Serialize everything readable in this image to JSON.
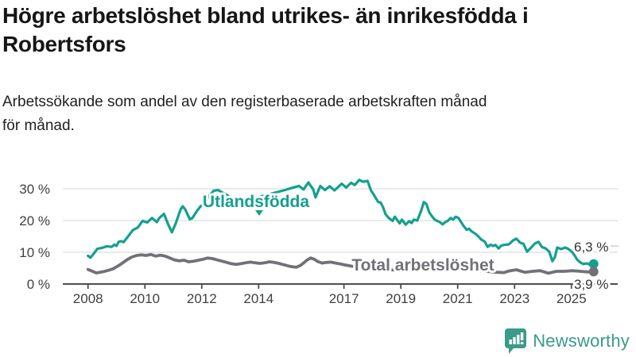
{
  "title": "Högre arbetslöshet bland utrikes- än inrikesfödda i\nRobertsfors",
  "subtitle": "Arbetssökande som andel av den registerbaserade arbetskraften månad\nför månad.",
  "logo": {
    "text": "Newsworthy",
    "icon": "bar-chart-speech-bubble-icon",
    "color": "#3a9a8b"
  },
  "colors": {
    "accent_teal": "#14a08e",
    "line_gray": "#737078",
    "axis": "#4d4d4d",
    "gridline": "#e3e3e3",
    "tick_text": "#3f3f3f",
    "value_text": "#333333"
  },
  "chart_data": {
    "type": "line",
    "title": "Högre arbetslöshet bland utrikes- än inrikesfödda i Robertsfors",
    "subtitle": "Arbetssökande som andel av den registerbaserade arbetskraften månad för månad.",
    "unit": "%",
    "grid": true,
    "xlim": [
      2007.9,
      2026.6
    ],
    "ylim": [
      0,
      35
    ],
    "x_ticks": [
      2008,
      2010,
      2012,
      2014,
      2017,
      2019,
      2021,
      2023,
      2025
    ],
    "y_ticks": [
      {
        "value": 0,
        "label": "0 %"
      },
      {
        "value": 10,
        "label": "10 %"
      },
      {
        "value": 20,
        "label": "20 %"
      },
      {
        "value": 30,
        "label": "30 %"
      }
    ],
    "series": [
      {
        "name": "Utlandsfödda",
        "color": "#14a08e",
        "end_label": "6,3 %",
        "end_value": 6.3,
        "points": [
          [
            2008.0,
            8.9
          ],
          [
            2008.08,
            8.3
          ],
          [
            2008.17,
            9.2
          ],
          [
            2008.33,
            11.1
          ],
          [
            2008.5,
            11.4
          ],
          [
            2008.67,
            11.9
          ],
          [
            2008.83,
            11.7
          ],
          [
            2008.92,
            12.4
          ],
          [
            2009.0,
            12.0
          ],
          [
            2009.08,
            13.3
          ],
          [
            2009.17,
            13.5
          ],
          [
            2009.25,
            13.2
          ],
          [
            2009.33,
            14.1
          ],
          [
            2009.5,
            16.1
          ],
          [
            2009.58,
            17.0
          ],
          [
            2009.75,
            17.8
          ],
          [
            2009.92,
            19.9
          ],
          [
            2010.08,
            19.4
          ],
          [
            2010.25,
            20.8
          ],
          [
            2010.42,
            19.5
          ],
          [
            2010.5,
            20.7
          ],
          [
            2010.67,
            22.1
          ],
          [
            2010.83,
            18.6
          ],
          [
            2010.95,
            16.3
          ],
          [
            2011.08,
            19.0
          ],
          [
            2011.25,
            23.4
          ],
          [
            2011.33,
            24.5
          ],
          [
            2011.42,
            23.5
          ],
          [
            2011.58,
            20.4
          ],
          [
            2011.67,
            20.8
          ],
          [
            2011.83,
            23.0
          ],
          [
            2011.95,
            24.4
          ],
          [
            2012.08,
            25.4
          ],
          [
            2012.25,
            27.6
          ],
          [
            2012.42,
            29.4
          ],
          [
            2012.58,
            29.6
          ],
          [
            2012.75,
            28.7
          ],
          [
            2012.92,
            27.9
          ],
          [
            2013.17,
            26.4
          ],
          [
            2013.42,
            25.3
          ],
          [
            2013.67,
            26.1
          ],
          [
            2013.92,
            27.2
          ],
          [
            2014.17,
            27.8
          ],
          [
            2014.42,
            28.4
          ],
          [
            2014.67,
            29.0
          ],
          [
            2014.92,
            29.6
          ],
          [
            2015.17,
            30.3
          ],
          [
            2015.42,
            30.9
          ],
          [
            2015.58,
            29.8
          ],
          [
            2015.75,
            32.0
          ],
          [
            2015.92,
            29.8
          ],
          [
            2016.0,
            27.3
          ],
          [
            2016.17,
            30.9
          ],
          [
            2016.33,
            29.6
          ],
          [
            2016.5,
            30.8
          ],
          [
            2016.67,
            29.5
          ],
          [
            2016.92,
            31.6
          ],
          [
            2017.08,
            30.4
          ],
          [
            2017.25,
            31.9
          ],
          [
            2017.38,
            31.2
          ],
          [
            2017.54,
            32.8
          ],
          [
            2017.67,
            32.2
          ],
          [
            2017.83,
            32.5
          ],
          [
            2017.95,
            29.5
          ],
          [
            2018.04,
            28.3
          ],
          [
            2018.13,
            26.9
          ],
          [
            2018.21,
            25.8
          ],
          [
            2018.29,
            25.7
          ],
          [
            2018.38,
            24.1
          ],
          [
            2018.46,
            22.0
          ],
          [
            2018.58,
            20.8
          ],
          [
            2018.71,
            19.9
          ],
          [
            2018.79,
            21.2
          ],
          [
            2018.96,
            19.1
          ],
          [
            2019.04,
            20.3
          ],
          [
            2019.17,
            18.7
          ],
          [
            2019.29,
            19.8
          ],
          [
            2019.38,
            19.2
          ],
          [
            2019.46,
            20.3
          ],
          [
            2019.58,
            20.0
          ],
          [
            2019.71,
            23.0
          ],
          [
            2019.81,
            25.8
          ],
          [
            2019.9,
            25.2
          ],
          [
            2020.0,
            22.6
          ],
          [
            2020.1,
            21.3
          ],
          [
            2020.19,
            20.3
          ],
          [
            2020.28,
            19.9
          ],
          [
            2020.37,
            19.5
          ],
          [
            2020.47,
            18.8
          ],
          [
            2020.56,
            19.5
          ],
          [
            2020.65,
            19.9
          ],
          [
            2020.75,
            20.8
          ],
          [
            2020.84,
            20.3
          ],
          [
            2020.93,
            21.2
          ],
          [
            2021.03,
            20.8
          ],
          [
            2021.12,
            19.5
          ],
          [
            2021.21,
            18.3
          ],
          [
            2021.31,
            17.1
          ],
          [
            2021.4,
            17.4
          ],
          [
            2021.49,
            16.6
          ],
          [
            2021.63,
            15.8
          ],
          [
            2021.74,
            14.9
          ],
          [
            2021.82,
            14.1
          ],
          [
            2021.96,
            13.3
          ],
          [
            2022.05,
            11.7
          ],
          [
            2022.16,
            12.4
          ],
          [
            2022.24,
            12.0
          ],
          [
            2022.33,
            12.3
          ],
          [
            2022.44,
            11.2
          ],
          [
            2022.52,
            12.0
          ],
          [
            2022.61,
            12.3
          ],
          [
            2022.8,
            12.5
          ],
          [
            2022.94,
            13.7
          ],
          [
            2023.06,
            14.3
          ],
          [
            2023.2,
            13.0
          ],
          [
            2023.31,
            12.7
          ],
          [
            2023.44,
            10.2
          ],
          [
            2023.53,
            11.0
          ],
          [
            2023.72,
            12.8
          ],
          [
            2023.84,
            13.3
          ],
          [
            2023.97,
            11.6
          ],
          [
            2024.08,
            11.3
          ],
          [
            2024.22,
            10.2
          ],
          [
            2024.33,
            7.2
          ],
          [
            2024.42,
            8.5
          ],
          [
            2024.5,
            11.5
          ],
          [
            2024.64,
            11.0
          ],
          [
            2024.78,
            11.5
          ],
          [
            2024.9,
            11.0
          ],
          [
            2025.01,
            10.2
          ],
          [
            2025.12,
            8.9
          ],
          [
            2025.2,
            7.7
          ],
          [
            2025.31,
            6.8
          ],
          [
            2025.42,
            6.3
          ],
          [
            2025.54,
            6.5
          ],
          [
            2025.65,
            6.1
          ],
          [
            2025.78,
            6.3
          ]
        ]
      },
      {
        "name": "Total arbetslöshet",
        "color": "#737078",
        "end_label": "3,9 %",
        "end_value": 3.9,
        "points": [
          [
            2008.0,
            4.6
          ],
          [
            2008.13,
            4.1
          ],
          [
            2008.29,
            3.5
          ],
          [
            2008.42,
            3.7
          ],
          [
            2008.54,
            3.9
          ],
          [
            2008.71,
            4.3
          ],
          [
            2008.88,
            4.8
          ],
          [
            2009.04,
            5.6
          ],
          [
            2009.21,
            6.6
          ],
          [
            2009.38,
            7.7
          ],
          [
            2009.54,
            8.5
          ],
          [
            2009.71,
            9.0
          ],
          [
            2009.88,
            9.2
          ],
          [
            2010.04,
            9.0
          ],
          [
            2010.21,
            9.3
          ],
          [
            2010.38,
            8.8
          ],
          [
            2010.54,
            9.1
          ],
          [
            2010.71,
            8.8
          ],
          [
            2010.88,
            8.2
          ],
          [
            2011.04,
            7.6
          ],
          [
            2011.21,
            7.3
          ],
          [
            2011.38,
            7.5
          ],
          [
            2011.54,
            7.0
          ],
          [
            2011.71,
            7.2
          ],
          [
            2011.88,
            7.5
          ],
          [
            2012.04,
            7.8
          ],
          [
            2012.21,
            8.2
          ],
          [
            2012.38,
            8.0
          ],
          [
            2012.54,
            7.6
          ],
          [
            2012.71,
            7.2
          ],
          [
            2012.88,
            6.8
          ],
          [
            2013.04,
            6.4
          ],
          [
            2013.21,
            6.2
          ],
          [
            2013.38,
            6.4
          ],
          [
            2013.54,
            6.7
          ],
          [
            2013.71,
            6.9
          ],
          [
            2013.88,
            6.7
          ],
          [
            2014.04,
            6.5
          ],
          [
            2014.21,
            6.7
          ],
          [
            2014.38,
            7.0
          ],
          [
            2014.54,
            6.8
          ],
          [
            2014.71,
            6.5
          ],
          [
            2014.83,
            6.2
          ],
          [
            2014.96,
            5.9
          ],
          [
            2015.08,
            5.6
          ],
          [
            2015.21,
            5.4
          ],
          [
            2015.33,
            5.3
          ],
          [
            2015.46,
            5.8
          ],
          [
            2015.58,
            6.6
          ],
          [
            2015.71,
            7.6
          ],
          [
            2015.83,
            8.2
          ],
          [
            2015.96,
            7.8
          ],
          [
            2016.08,
            7.1
          ],
          [
            2016.23,
            6.6
          ],
          [
            2016.38,
            6.8
          ],
          [
            2016.54,
            6.9
          ],
          [
            2016.71,
            6.6
          ],
          [
            2016.88,
            6.3
          ],
          [
            2017.04,
            6.0
          ],
          [
            2017.29,
            5.6
          ],
          [
            2017.54,
            5.3
          ],
          [
            2017.79,
            5.0
          ],
          [
            2018.04,
            4.8
          ],
          [
            2018.29,
            4.6
          ],
          [
            2018.54,
            4.5
          ],
          [
            2018.79,
            4.4
          ],
          [
            2019.04,
            4.3
          ],
          [
            2019.29,
            4.4
          ],
          [
            2019.54,
            4.6
          ],
          [
            2019.79,
            4.8
          ],
          [
            2020.04,
            5.2
          ],
          [
            2020.29,
            5.7
          ],
          [
            2020.46,
            5.9
          ],
          [
            2020.63,
            5.7
          ],
          [
            2020.88,
            5.4
          ],
          [
            2021.13,
            5.0
          ],
          [
            2021.38,
            4.7
          ],
          [
            2021.63,
            4.4
          ],
          [
            2021.88,
            4.1
          ],
          [
            2022.13,
            3.9
          ],
          [
            2022.38,
            3.7
          ],
          [
            2022.63,
            3.6
          ],
          [
            2022.8,
            4.1
          ],
          [
            2023.06,
            4.5
          ],
          [
            2023.36,
            3.7
          ],
          [
            2023.63,
            4.0
          ],
          [
            2023.9,
            4.2
          ],
          [
            2024.19,
            3.4
          ],
          [
            2024.47,
            4.0
          ],
          [
            2024.75,
            4.0
          ],
          [
            2025.03,
            4.2
          ],
          [
            2025.31,
            4.0
          ],
          [
            2025.59,
            3.8
          ],
          [
            2025.78,
            3.9
          ]
        ]
      }
    ],
    "series_label_annotations": [
      {
        "text": "Utlandsfödda",
        "marker": "triangle-down",
        "near_year": 2013.3
      },
      {
        "text": "Total arbetslöshet",
        "marker": "none",
        "near_year": 2019.8
      }
    ]
  }
}
